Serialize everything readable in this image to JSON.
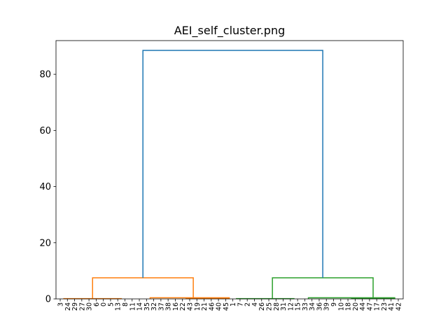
{
  "chart_data": {
    "type": "dendrogram",
    "title": "AEI_self_cluster.png",
    "xlabel": "",
    "ylabel": "",
    "ylim": [
      0,
      92
    ],
    "yticks": [
      0,
      20,
      40,
      60,
      80
    ],
    "grid": false,
    "legend": "none",
    "leaf_labels": [
      "3",
      "24",
      "29",
      "27",
      "30",
      "6",
      "0",
      "5",
      "13",
      "8",
      "11",
      "14",
      "35",
      "32",
      "37",
      "38",
      "16",
      "22",
      "43",
      "19",
      "21",
      "46",
      "40",
      "45",
      "1",
      "7",
      "2",
      "4",
      "26",
      "25",
      "28",
      "31",
      "12",
      "15",
      "33",
      "34",
      "36",
      "39",
      "9",
      "10",
      "18",
      "20",
      "44",
      "47",
      "17",
      "23",
      "41",
      "42"
    ],
    "colors": {
      "root": "#1f77b4",
      "cluster_a": "#ff7f0e",
      "cluster_b": "#2ca02c"
    },
    "links": [
      {
        "x": [
          4.5,
          4.5,
          18.5,
          18.5
        ],
        "y": [
          0,
          7.5,
          7.5,
          0
        ],
        "color_key": "cluster_a"
      },
      {
        "x": [
          29.5,
          29.5,
          43.5,
          43.5
        ],
        "y": [
          0,
          7.5,
          7.5,
          0
        ],
        "color_key": "cluster_b"
      },
      {
        "x": [
          11.5,
          11.5,
          36.5,
          36.5
        ],
        "y": [
          7.5,
          88.5,
          88.5,
          7.5
        ],
        "color_key": "root"
      },
      {
        "x": [
          0.5,
          0.5,
          8.5,
          8.5
        ],
        "y": [
          0,
          0.1,
          0.1,
          0
        ],
        "color_key": "cluster_a"
      },
      {
        "x": [
          12.5,
          12.5,
          23.5,
          23.5
        ],
        "y": [
          0,
          0.4,
          0.4,
          0
        ],
        "color_key": "cluster_a"
      },
      {
        "x": [
          17.5,
          17.5,
          23.5,
          23.5
        ],
        "y": [
          0,
          0.2,
          0.2,
          0
        ],
        "color_key": "cluster_a"
      },
      {
        "x": [
          24.5,
          24.5,
          32.5,
          32.5
        ],
        "y": [
          0,
          0.1,
          0.1,
          0
        ],
        "color_key": "cluster_b"
      },
      {
        "x": [
          34.5,
          34.5,
          46.5,
          46.5
        ],
        "y": [
          0,
          0.4,
          0.4,
          0
        ],
        "color_key": "cluster_b"
      },
      {
        "x": [
          40.5,
          40.5,
          46.5,
          46.5
        ],
        "y": [
          0,
          0.2,
          0.2,
          0
        ],
        "color_key": "cluster_b"
      }
    ]
  }
}
